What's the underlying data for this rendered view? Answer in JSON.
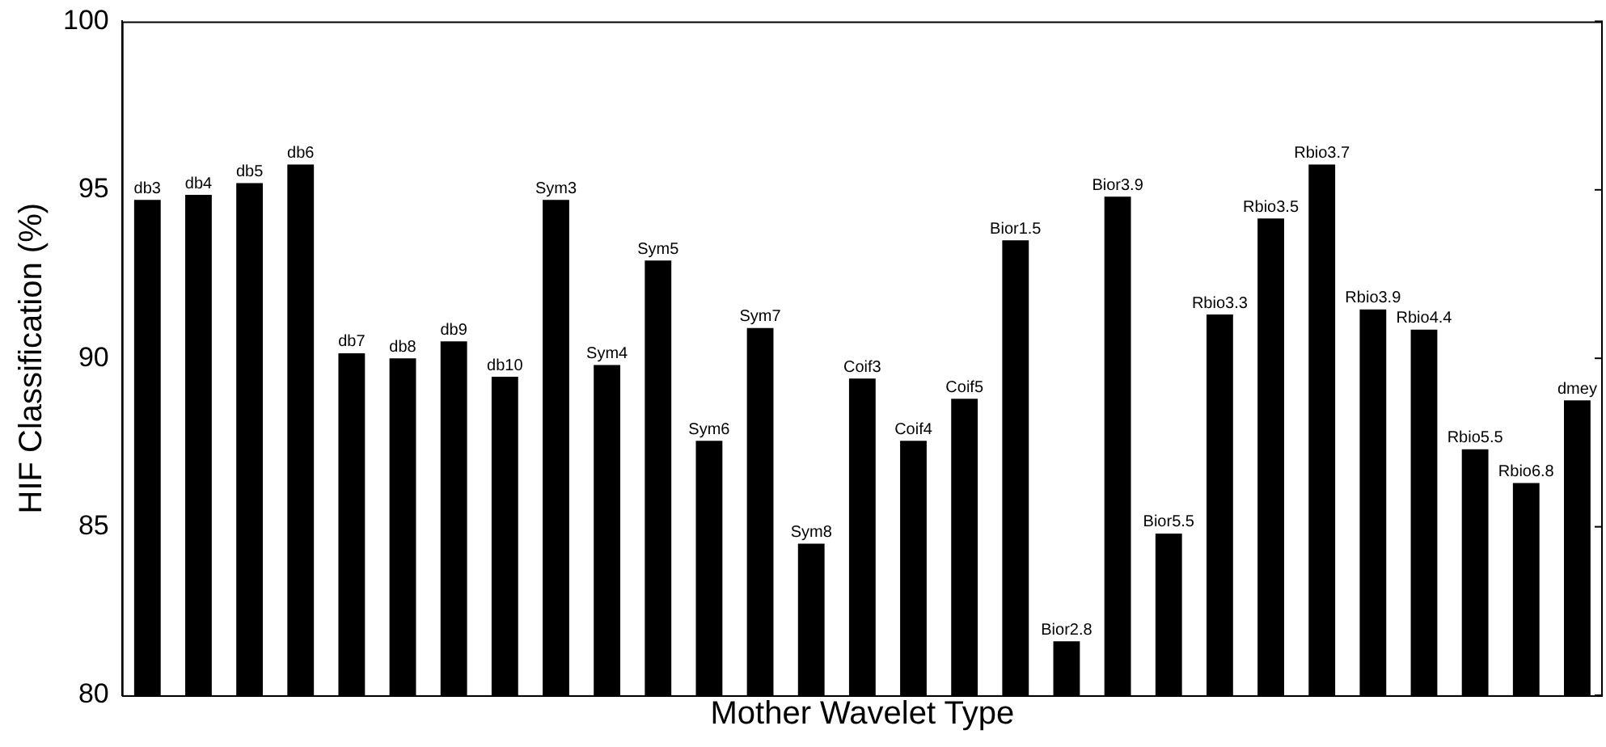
{
  "chart_data": {
    "type": "bar",
    "xlabel": "Mother Wavelet Type",
    "ylabel": "HIF Classification (%)",
    "categories": [
      "db3",
      "db4",
      "db5",
      "db6",
      "db7",
      "db8",
      "db9",
      "db10",
      "Sym3",
      "Sym4",
      "Sym5",
      "Sym6",
      "Sym7",
      "Sym8",
      "Coif3",
      "Coif4",
      "Coif5",
      "Bior1.5",
      "Bior2.8",
      "Bior3.9",
      "Bior5.5",
      "Rbio3.3",
      "Rbio3.5",
      "Rbio3.7",
      "Rbio3.9",
      "Rbio4.4",
      "Rbio5.5",
      "Rbio6.8",
      "dmey"
    ],
    "values": [
      94.7,
      94.85,
      95.2,
      95.75,
      90.15,
      90.0,
      90.5,
      89.45,
      94.7,
      89.8,
      92.9,
      87.55,
      90.9,
      84.5,
      89.4,
      87.55,
      88.8,
      93.5,
      81.6,
      94.8,
      84.8,
      91.3,
      94.15,
      95.75,
      91.45,
      90.85,
      87.3,
      86.3,
      88.75
    ],
    "color": "#000000",
    "ylim": [
      80,
      100
    ],
    "yticks": [
      80,
      85,
      90,
      95,
      100
    ],
    "grid": false,
    "legend": false,
    "tick_labels": "y"
  }
}
